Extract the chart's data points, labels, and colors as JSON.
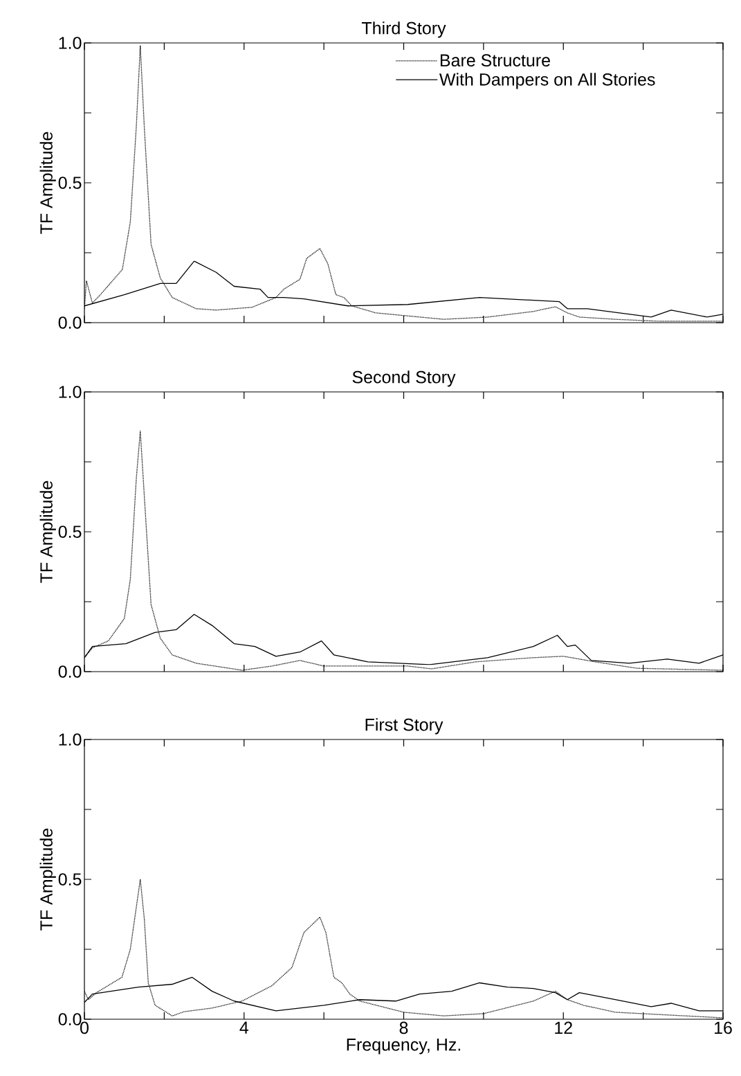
{
  "chart_data": [
    {
      "type": "line",
      "title": "Third Story",
      "ylabel": "TF Amplitude",
      "xlim": [
        0,
        16
      ],
      "ylim": [
        0,
        1
      ],
      "tick_labels": "y",
      "legend": "top right",
      "xticks": [
        {
          "value": 0,
          "label": null
        },
        {
          "value": 2,
          "label": null
        },
        {
          "value": 4,
          "label": null
        },
        {
          "value": 6,
          "label": null
        },
        {
          "value": 8,
          "label": null
        },
        {
          "value": 10,
          "label": null
        },
        {
          "value": 12,
          "label": null
        },
        {
          "value": 14,
          "label": null
        },
        {
          "value": 16,
          "label": null
        }
      ],
      "yticks": [
        {
          "value": 0,
          "label": "0.0"
        },
        {
          "value": 0.25,
          "label": null
        },
        {
          "value": 0.5,
          "label": "0.5"
        },
        {
          "value": 0.75,
          "label": null
        },
        {
          "value": 1,
          "label": "1.0"
        }
      ],
      "series": [
        {
          "name": "Bare Structure",
          "color": "#000000",
          "line_style": "dotted",
          "x": [
            0,
            0.05,
            0.2,
            0.4,
            0.95,
            1.15,
            1.3,
            1.4,
            1.5,
            1.67,
            1.9,
            2.2,
            2.8,
            3.3,
            4.2,
            4.8,
            5.0,
            5.4,
            5.57,
            5.9,
            6.1,
            6.3,
            6.5,
            6.7,
            7.3,
            9.0,
            10.1,
            11.25,
            11.8,
            12.1,
            12.4,
            13.3,
            14.4,
            16
          ],
          "values": [
            0.05,
            0.15,
            0.07,
            0.1,
            0.19,
            0.36,
            0.7,
            0.99,
            0.7,
            0.28,
            0.16,
            0.09,
            0.05,
            0.045,
            0.055,
            0.09,
            0.12,
            0.155,
            0.23,
            0.265,
            0.21,
            0.1,
            0.09,
            0.06,
            0.035,
            0.012,
            0.02,
            0.04,
            0.057,
            0.035,
            0.02,
            0.012,
            0.005,
            0.005
          ]
        },
        {
          "name": "With Dampers on All Stories",
          "color": "#000000",
          "line_style": "solid",
          "x": [
            0,
            1.0,
            1.9,
            2.3,
            2.75,
            3.3,
            3.75,
            4.4,
            4.6,
            5.0,
            5.5,
            6.6,
            8.1,
            9.9,
            11.25,
            11.9,
            12.1,
            12.6,
            14.2,
            14.7,
            15.6,
            16
          ],
          "values": [
            0.06,
            0.1,
            0.14,
            0.14,
            0.22,
            0.18,
            0.13,
            0.12,
            0.09,
            0.09,
            0.085,
            0.06,
            0.065,
            0.09,
            0.08,
            0.075,
            0.05,
            0.05,
            0.02,
            0.045,
            0.02,
            0.03
          ]
        }
      ]
    },
    {
      "type": "line",
      "title": "Second Story",
      "ylabel": "TF Amplitude",
      "xlim": [
        0,
        16
      ],
      "ylim": [
        0,
        1
      ],
      "tick_labels": "y",
      "xticks": [
        {
          "value": 0,
          "label": null
        },
        {
          "value": 2,
          "label": null
        },
        {
          "value": 4,
          "label": null
        },
        {
          "value": 6,
          "label": null
        },
        {
          "value": 8,
          "label": null
        },
        {
          "value": 10,
          "label": null
        },
        {
          "value": 12,
          "label": null
        },
        {
          "value": 14,
          "label": null
        },
        {
          "value": 16,
          "label": null
        }
      ],
      "yticks": [
        {
          "value": 0,
          "label": "0.0"
        },
        {
          "value": 0.25,
          "label": null
        },
        {
          "value": 0.5,
          "label": "0.5"
        },
        {
          "value": 0.75,
          "label": null
        },
        {
          "value": 1,
          "label": "1.0"
        }
      ],
      "series": [
        {
          "color": "#000000",
          "line_style": "dotted",
          "x": [
            0,
            0.2,
            0.6,
            1.0,
            1.15,
            1.3,
            1.4,
            1.5,
            1.67,
            1.9,
            2.2,
            2.8,
            3.95,
            4.7,
            5.4,
            6.0,
            8.1,
            8.7,
            9.8,
            11.25,
            12.0,
            12.8,
            13.85,
            16
          ],
          "values": [
            0.05,
            0.085,
            0.11,
            0.19,
            0.33,
            0.69,
            0.86,
            0.63,
            0.24,
            0.12,
            0.06,
            0.03,
            0.005,
            0.02,
            0.04,
            0.02,
            0.02,
            0.01,
            0.035,
            0.05,
            0.055,
            0.035,
            0.012,
            0.005
          ]
        },
        {
          "color": "#000000",
          "line_style": "solid",
          "x": [
            0,
            0.2,
            1.04,
            1.77,
            2.3,
            2.75,
            3.2,
            3.75,
            4.27,
            4.8,
            5.4,
            5.94,
            6.25,
            7.1,
            8.65,
            10.1,
            11.25,
            11.85,
            12.1,
            12.3,
            12.7,
            13.65,
            14.6,
            15.4,
            16
          ],
          "values": [
            0.05,
            0.09,
            0.1,
            0.14,
            0.15,
            0.205,
            0.165,
            0.1,
            0.09,
            0.055,
            0.07,
            0.11,
            0.06,
            0.035,
            0.025,
            0.05,
            0.09,
            0.13,
            0.09,
            0.095,
            0.04,
            0.03,
            0.045,
            0.03,
            0.06
          ]
        }
      ]
    },
    {
      "type": "line",
      "title": "First Story",
      "ylabel": "TF Amplitude",
      "xlabel": "Frequency, Hz.",
      "xlim": [
        0,
        16
      ],
      "ylim": [
        0,
        1
      ],
      "xticks": [
        {
          "value": 0,
          "label": "0"
        },
        {
          "value": 2,
          "label": null
        },
        {
          "value": 4,
          "label": "4"
        },
        {
          "value": 6,
          "label": null
        },
        {
          "value": 8,
          "label": "8"
        },
        {
          "value": 10,
          "label": null
        },
        {
          "value": 12,
          "label": "12"
        },
        {
          "value": 14,
          "label": null
        },
        {
          "value": 16,
          "label": "16"
        }
      ],
      "yticks": [
        {
          "value": 0,
          "label": "0.0"
        },
        {
          "value": 0.25,
          "label": null
        },
        {
          "value": 0.5,
          "label": "0.5"
        },
        {
          "value": 0.75,
          "label": null
        },
        {
          "value": 1,
          "label": "1.0"
        }
      ],
      "series": [
        {
          "color": "#000000",
          "line_style": "dotted",
          "x": [
            0,
            0.1,
            0.3,
            0.94,
            1.15,
            1.3,
            1.4,
            1.5,
            1.6,
            1.77,
            2.2,
            2.5,
            3.2,
            3.95,
            4.7,
            5.2,
            5.5,
            5.9,
            6.05,
            6.25,
            6.45,
            6.65,
            6.9,
            8.0,
            9.0,
            10.0,
            11.25,
            11.8,
            12.1,
            12.5,
            13.3,
            16
          ],
          "values": [
            0.1,
            0.07,
            0.095,
            0.15,
            0.25,
            0.4,
            0.5,
            0.36,
            0.13,
            0.05,
            0.012,
            0.027,
            0.04,
            0.065,
            0.12,
            0.185,
            0.31,
            0.365,
            0.31,
            0.15,
            0.13,
            0.09,
            0.065,
            0.025,
            0.012,
            0.02,
            0.065,
            0.1,
            0.07,
            0.05,
            0.025,
            0.005
          ]
        },
        {
          "color": "#000000",
          "line_style": "solid",
          "x": [
            0,
            0.2,
            1.35,
            2.2,
            2.7,
            3.2,
            3.75,
            4.8,
            6.0,
            6.9,
            7.8,
            8.4,
            9.2,
            9.9,
            10.6,
            11.25,
            11.8,
            12.1,
            12.4,
            13.3,
            14.2,
            14.7,
            15.4,
            16
          ],
          "values": [
            0.06,
            0.09,
            0.115,
            0.125,
            0.15,
            0.1,
            0.065,
            0.03,
            0.05,
            0.07,
            0.065,
            0.09,
            0.1,
            0.13,
            0.115,
            0.11,
            0.095,
            0.07,
            0.095,
            0.07,
            0.045,
            0.057,
            0.03,
            0.03
          ]
        }
      ]
    }
  ]
}
